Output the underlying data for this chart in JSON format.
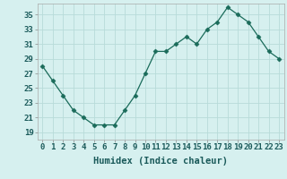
{
  "x": [
    0,
    1,
    2,
    3,
    4,
    5,
    6,
    7,
    8,
    9,
    10,
    11,
    12,
    13,
    14,
    15,
    16,
    17,
    18,
    19,
    20,
    21,
    22,
    23
  ],
  "y": [
    28,
    26,
    24,
    22,
    21,
    20,
    20,
    20,
    22,
    24,
    27,
    30,
    30,
    31,
    32,
    31,
    33,
    34,
    36,
    35,
    34,
    32,
    30,
    29
  ],
  "line_color": "#1a6b5a",
  "marker_color": "#1a6b5a",
  "bg_color": "#d6f0ef",
  "grid_color": "#b8dbd9",
  "xlabel": "Humidex (Indice chaleur)",
  "ylabel_ticks": [
    19,
    21,
    23,
    25,
    27,
    29,
    31,
    33,
    35
  ],
  "ylim": [
    18.0,
    36.5
  ],
  "xlim": [
    -0.5,
    23.5
  ],
  "label_fontsize": 7.5,
  "tick_fontsize": 6.5
}
